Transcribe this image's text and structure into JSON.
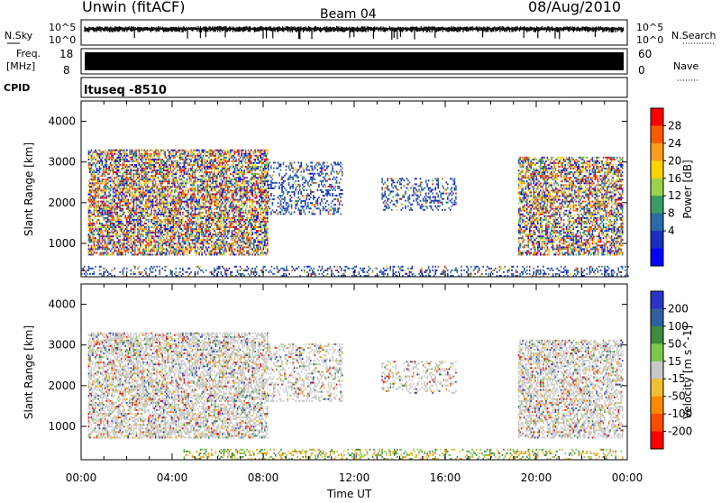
{
  "header": {
    "title": "Unwin (fitACF)",
    "beam": "Beam 04",
    "date": "08/Aug/2010"
  },
  "status_panels": {
    "nsky_label": "N.Sky",
    "nsearch_label": "N.Search",
    "noise_ticks": [
      "10^5",
      "10^0"
    ],
    "freq_label_line1": "Freq.",
    "freq_label_line2": "[MHz]",
    "freq_ticks": [
      "18",
      "8"
    ],
    "nave_label": "Nave",
    "nave_ticks": [
      "60",
      "0"
    ],
    "cpid_label": "CPID",
    "cpid_text": "ltuseq -8510"
  },
  "chart_data": [
    {
      "type": "heatmap",
      "name": "power",
      "ylabel": "Slant Range [km]",
      "xlabel": "",
      "ylim": [
        180,
        4500
      ],
      "y_ticks": [
        1000,
        2000,
        3000,
        4000
      ],
      "xlim_hours": [
        0,
        24
      ],
      "colorbar_label": "Power [dB]",
      "colorbar_ticks": [
        "28",
        "24",
        "20",
        "16",
        "12",
        "8",
        "4"
      ],
      "colorbar_colors": [
        "#ff0000",
        "#ff5a00",
        "#ff9a1a",
        "#ffd200",
        "#9ad24a",
        "#3c9a64",
        "#2a6aa8",
        "#1a2fbf",
        "#0000ff"
      ],
      "echo_regions": [
        {
          "x0": 0.3,
          "x1": 8.2,
          "y0": 700,
          "y1": 3300,
          "density": 0.65,
          "dominant": "mixed"
        },
        {
          "x0": 8.2,
          "x1": 11.5,
          "y0": 1700,
          "y1": 3000,
          "density": 0.35,
          "dominant": "blue"
        },
        {
          "x0": 13.2,
          "x1": 16.5,
          "y0": 1800,
          "y1": 2600,
          "density": 0.35,
          "dominant": "blue"
        },
        {
          "x0": 19.2,
          "x1": 23.8,
          "y0": 700,
          "y1": 3100,
          "density": 0.6,
          "dominant": "mixed"
        },
        {
          "x0": 0.0,
          "x1": 24.0,
          "y0": 180,
          "y1": 450,
          "density": 0.3,
          "dominant": "blue"
        }
      ]
    },
    {
      "type": "heatmap",
      "name": "velocity",
      "ylabel": "Slant Range [km]",
      "xlabel": "Time UT",
      "ylim": [
        180,
        4500
      ],
      "y_ticks": [
        1000,
        2000,
        3000,
        4000
      ],
      "xlim_hours": [
        0,
        24
      ],
      "x_tick_labels": [
        "00:00",
        "04:00",
        "08:00",
        "12:00",
        "16:00",
        "20:00",
        "00:00"
      ],
      "colorbar_label": "Velocity [m s^-1]",
      "colorbar_ticks": [
        "200",
        "100",
        "50",
        "15",
        "-15",
        "-50",
        "-100",
        "-200"
      ],
      "colorbar_colors": [
        "#2a35c8",
        "#3060a0",
        "#3f8a3f",
        "#7cc84a",
        "#c8c8c8",
        "#f0c030",
        "#ff8a00",
        "#ff4a00",
        "#ff0000"
      ],
      "echo_regions": [
        {
          "x0": 0.3,
          "x1": 8.2,
          "y0": 700,
          "y1": 3300,
          "density": 0.6,
          "dominant": "grey"
        },
        {
          "x0": 8.2,
          "x1": 11.5,
          "y0": 1600,
          "y1": 3000,
          "density": 0.35,
          "dominant": "grey"
        },
        {
          "x0": 13.2,
          "x1": 16.5,
          "y0": 1800,
          "y1": 2600,
          "density": 0.3,
          "dominant": "grey"
        },
        {
          "x0": 19.2,
          "x1": 23.8,
          "y0": 700,
          "y1": 3100,
          "density": 0.55,
          "dominant": "grey"
        },
        {
          "x0": 4.5,
          "x1": 23.8,
          "y0": 180,
          "y1": 450,
          "density": 0.3,
          "dominant": "green"
        }
      ]
    }
  ]
}
